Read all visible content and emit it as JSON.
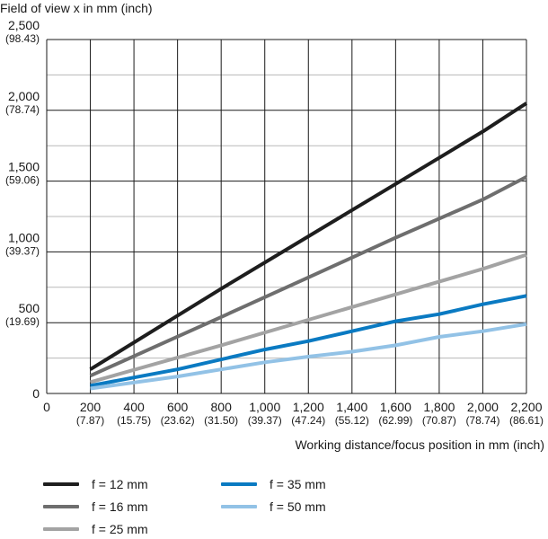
{
  "chart_data": {
    "type": "line",
    "ylabel": "Field of view x in mm (inch)",
    "xlabel": "Working distance/focus position in mm (inch)",
    "xlim": [
      0,
      2200
    ],
    "ylim": [
      0,
      2500
    ],
    "grid": true,
    "x_ticks": [
      {
        "value": 0,
        "label": "0",
        "sub": ""
      },
      {
        "value": 200,
        "label": "200",
        "sub": "(7.87)"
      },
      {
        "value": 400,
        "label": "400",
        "sub": "(15.75)"
      },
      {
        "value": 600,
        "label": "600",
        "sub": "(23.62)"
      },
      {
        "value": 800,
        "label": "800",
        "sub": "(31.50)"
      },
      {
        "value": 1000,
        "label": "1,000",
        "sub": "(39.37)"
      },
      {
        "value": 1200,
        "label": "1,200",
        "sub": "(47.24)"
      },
      {
        "value": 1400,
        "label": "1,400",
        "sub": "(55.12)"
      },
      {
        "value": 1600,
        "label": "1,600",
        "sub": "(62.99)"
      },
      {
        "value": 1800,
        "label": "1,800",
        "sub": "(70.87)"
      },
      {
        "value": 2000,
        "label": "2,000",
        "sub": "(78.74)"
      },
      {
        "value": 2200,
        "label": "2,200",
        "sub": "(86.61)"
      }
    ],
    "y_ticks": [
      {
        "value": 0,
        "label": "0",
        "sub": ""
      },
      {
        "value": 500,
        "label": "500",
        "sub": "(19.69)"
      },
      {
        "value": 1000,
        "label": "1,000",
        "sub": "(39.37)"
      },
      {
        "value": 1500,
        "label": "1,500",
        "sub": "(59.06)"
      },
      {
        "value": 2000,
        "label": "2,000",
        "sub": "(78.74)"
      },
      {
        "value": 2500,
        "label": "2,500",
        "sub": "(98.43)"
      }
    ],
    "y_minor_gridlines": [
      250,
      750,
      1250,
      1750,
      2250
    ],
    "legend_placement": "bottom",
    "series": [
      {
        "name": "f = 12 mm",
        "color": "#1e1e1e",
        "points": [
          [
            200,
            170
          ],
          [
            800,
            740
          ],
          [
            1200,
            1110
          ],
          [
            1600,
            1480
          ],
          [
            2000,
            1850
          ],
          [
            2200,
            2050
          ]
        ]
      },
      {
        "name": "f = 16 mm",
        "color": "#6e6e6e",
        "points": [
          [
            200,
            125
          ],
          [
            800,
            540
          ],
          [
            1200,
            820
          ],
          [
            1600,
            1100
          ],
          [
            2000,
            1370
          ],
          [
            2200,
            1530
          ]
        ]
      },
      {
        "name": "f = 25 mm",
        "color": "#a3a3a3",
        "points": [
          [
            200,
            80
          ],
          [
            800,
            340
          ],
          [
            1200,
            520
          ],
          [
            1600,
            700
          ],
          [
            2000,
            880
          ],
          [
            2200,
            980
          ]
        ]
      },
      {
        "name": "f = 35 mm",
        "color": "#0a7ac2",
        "points": [
          [
            200,
            55
          ],
          [
            600,
            170
          ],
          [
            1000,
            310
          ],
          [
            1200,
            370
          ],
          [
            1400,
            440
          ],
          [
            1600,
            510
          ],
          [
            1800,
            560
          ],
          [
            2000,
            630
          ],
          [
            2200,
            690
          ]
        ]
      },
      {
        "name": "f = 50 mm",
        "color": "#92c2e6",
        "points": [
          [
            200,
            35
          ],
          [
            600,
            120
          ],
          [
            1000,
            220
          ],
          [
            1200,
            260
          ],
          [
            1400,
            295
          ],
          [
            1600,
            340
          ],
          [
            1800,
            400
          ],
          [
            2000,
            440
          ],
          [
            2200,
            490
          ]
        ]
      }
    ]
  }
}
